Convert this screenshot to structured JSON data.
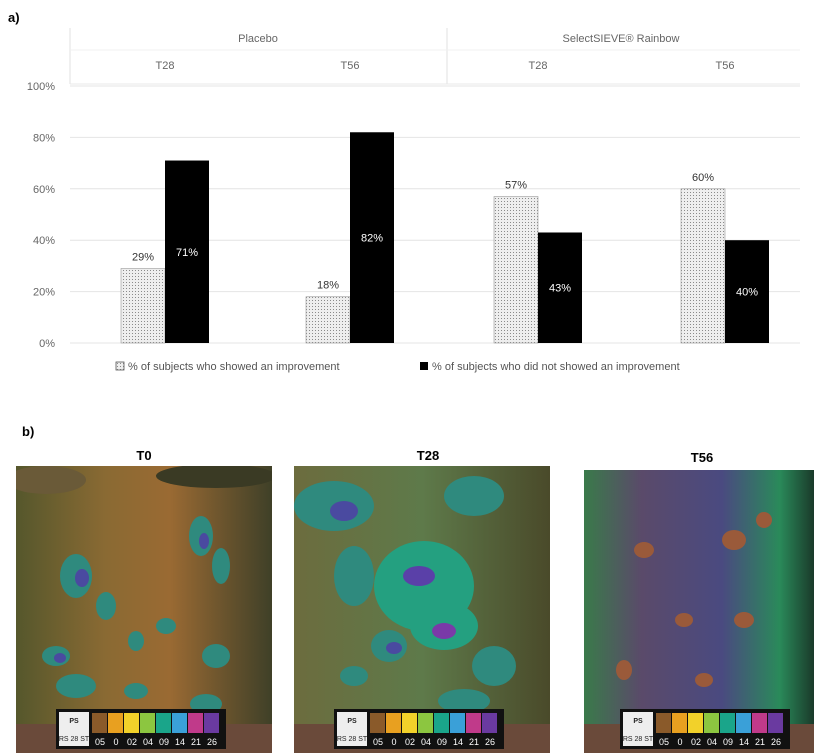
{
  "panel_a_label": "a)",
  "panel_b_label": "b)",
  "chart_data": {
    "type": "bar",
    "groups": [
      {
        "name": "Placebo",
        "categories": [
          "T28",
          "T56"
        ]
      },
      {
        "name": "SelectSIEVE® Rainbow",
        "categories": [
          "T28",
          "T56"
        ]
      }
    ],
    "categories": [
      "T28",
      "T56",
      "T28",
      "T56"
    ],
    "series": [
      {
        "name": "% of subjects who showed an improvement",
        "values": [
          29,
          18,
          57,
          60
        ],
        "color": "#d9d9d9",
        "pattern": "dotted"
      },
      {
        "name": "% of subjects who did not showed an improvement",
        "values": [
          71,
          82,
          43,
          40
        ],
        "color": "#000000"
      }
    ],
    "data_labels": {
      "improved": [
        "29%",
        "18%",
        "57%",
        "60%"
      ],
      "not_improved": [
        "71%",
        "82%",
        "43%",
        "40%"
      ]
    },
    "yticks": [
      "0%",
      "20%",
      "40%",
      "60%",
      "80%",
      "100%"
    ],
    "ylim": [
      0,
      100
    ],
    "grid": true,
    "legend_position": "bottom"
  },
  "photos": [
    {
      "title": "T0"
    },
    {
      "title": "T28"
    },
    {
      "title": "T56"
    }
  ],
  "scale_strip": {
    "brand": "PS",
    "code": "RS 28 ST",
    "numbers": [
      "05",
      "0",
      "02",
      "04",
      "09",
      "14",
      "21",
      "26"
    ],
    "colors": [
      "#8a5a2a",
      "#e8a020",
      "#f2d12a",
      "#8cc640",
      "#1aa58a",
      "#3aa0d8",
      "#c03a8a",
      "#6a3aa0"
    ]
  }
}
